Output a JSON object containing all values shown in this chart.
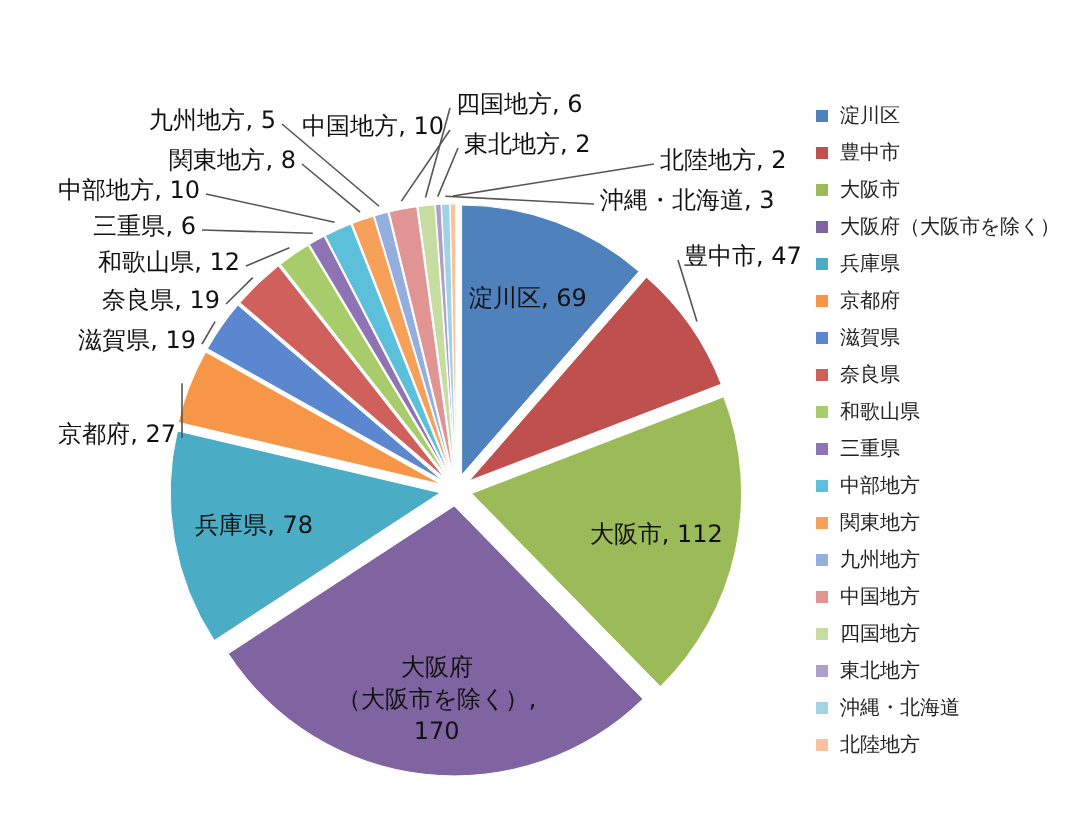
{
  "chart_data": {
    "type": "pie",
    "categories": [
      "淀川区",
      "豊中市",
      "大阪市",
      "大阪府（大阪市を除く）",
      "兵庫県",
      "京都府",
      "滋賀県",
      "奈良県",
      "和歌山県",
      "三重県",
      "中部地方",
      "関東地方",
      "九州地方",
      "中国地方",
      "四国地方",
      "東北地方",
      "沖縄・北海道",
      "北陸地方"
    ],
    "values": [
      69,
      47,
      112,
      170,
      78,
      27,
      19,
      19,
      12,
      6,
      10,
      8,
      5,
      10,
      6,
      2,
      3,
      2
    ],
    "colors": [
      "#4f81bd",
      "#c0504d",
      "#9bbb59",
      "#8064a2",
      "#4bacc6",
      "#f79646",
      "#5b87d0",
      "#d0605c",
      "#a8cc6a",
      "#8e74b5",
      "#5cc0da",
      "#f7a05a",
      "#94aee0",
      "#e09494",
      "#c6dca0",
      "#ae9fc8",
      "#a0d4e4",
      "#f8c39c"
    ],
    "value_labels": [
      "淀川区, 69",
      "豊中市, 47",
      "大阪市, 112",
      "大阪府（大阪市を除く）, 170",
      "兵庫県, 78",
      "京都府, 27",
      "滋賀県, 19",
      "奈良県, 19",
      "和歌山県, 12",
      "三重県, 6",
      "中部地方, 10",
      "関東地方, 8",
      "九州地方, 5",
      "中国地方, 10",
      "四国地方, 6",
      "東北地方, 2",
      "沖縄・北海道, 3",
      "北陸地方, 2"
    ],
    "legend": "right"
  }
}
